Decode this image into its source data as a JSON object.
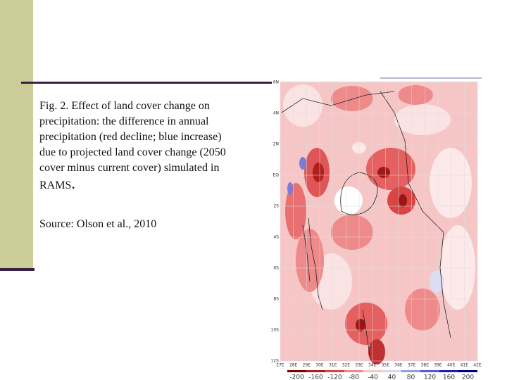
{
  "caption": {
    "label": "Fig. 2.",
    "text": "Effect of land cover change on precipitation: the difference in annual precipitation (red decline; blue increase) due to projected land cover change (2050 cover minus current cover) simulated in RAMS",
    "period": "."
  },
  "source": "Source: Olson et al., 2010",
  "map": {
    "lat_labels": [
      "6N",
      "4N",
      "2N",
      "EQ",
      "2S",
      "4S",
      "6S",
      "8S",
      "10S",
      "12S"
    ],
    "lon_labels": [
      "27E",
      "28E",
      "29E",
      "30E",
      "31E",
      "32E",
      "33E",
      "34E",
      "35E",
      "36E",
      "37E",
      "38E",
      "39E",
      "40E",
      "41E",
      "42E"
    ],
    "colorbar_labels": [
      -200,
      -160,
      -120,
      -80,
      -40,
      40,
      80,
      120,
      160,
      200
    ]
  }
}
